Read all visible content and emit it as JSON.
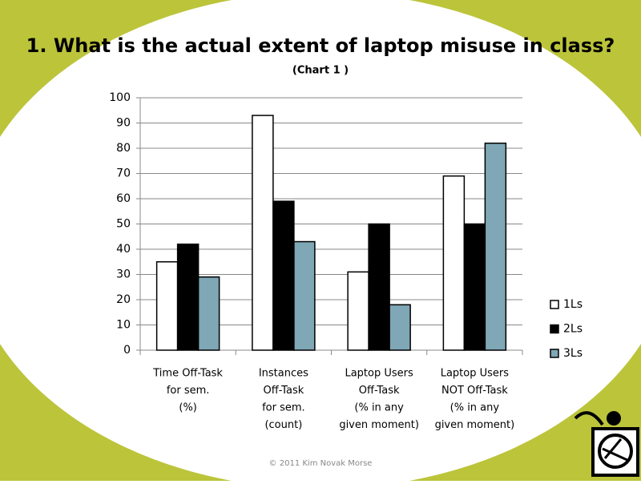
{
  "chart_data": {
    "type": "bar",
    "title": "1. What is the actual extent of laptop misuse in class?",
    "subtitle": "(Chart 1 )",
    "categories": [
      [
        "Time Off-Task",
        "for sem.",
        "(%)"
      ],
      [
        "Instances",
        "Off-Task",
        "for sem.",
        "(count)"
      ],
      [
        "Laptop Users",
        "Off-Task",
        "(%  in any",
        "given moment)"
      ],
      [
        "Laptop Users",
        "NOT Off-Task",
        "(%  in any",
        "given moment)"
      ]
    ],
    "series": [
      {
        "name": "1Ls",
        "color": "#ffffff",
        "values": [
          35,
          93,
          31,
          69
        ]
      },
      {
        "name": "2Ls",
        "color": "#000000",
        "values": [
          42,
          59,
          50,
          50
        ]
      },
      {
        "name": "3Ls",
        "color": "#7fa7b5",
        "values": [
          29,
          43,
          18,
          82
        ]
      }
    ],
    "ylim": [
      0,
      100
    ],
    "yticks": [
      0,
      10,
      20,
      30,
      40,
      50,
      60,
      70,
      80,
      90,
      100
    ],
    "grid": true,
    "legend": "right",
    "footer": "© 2011 Kim Novak Morse"
  }
}
